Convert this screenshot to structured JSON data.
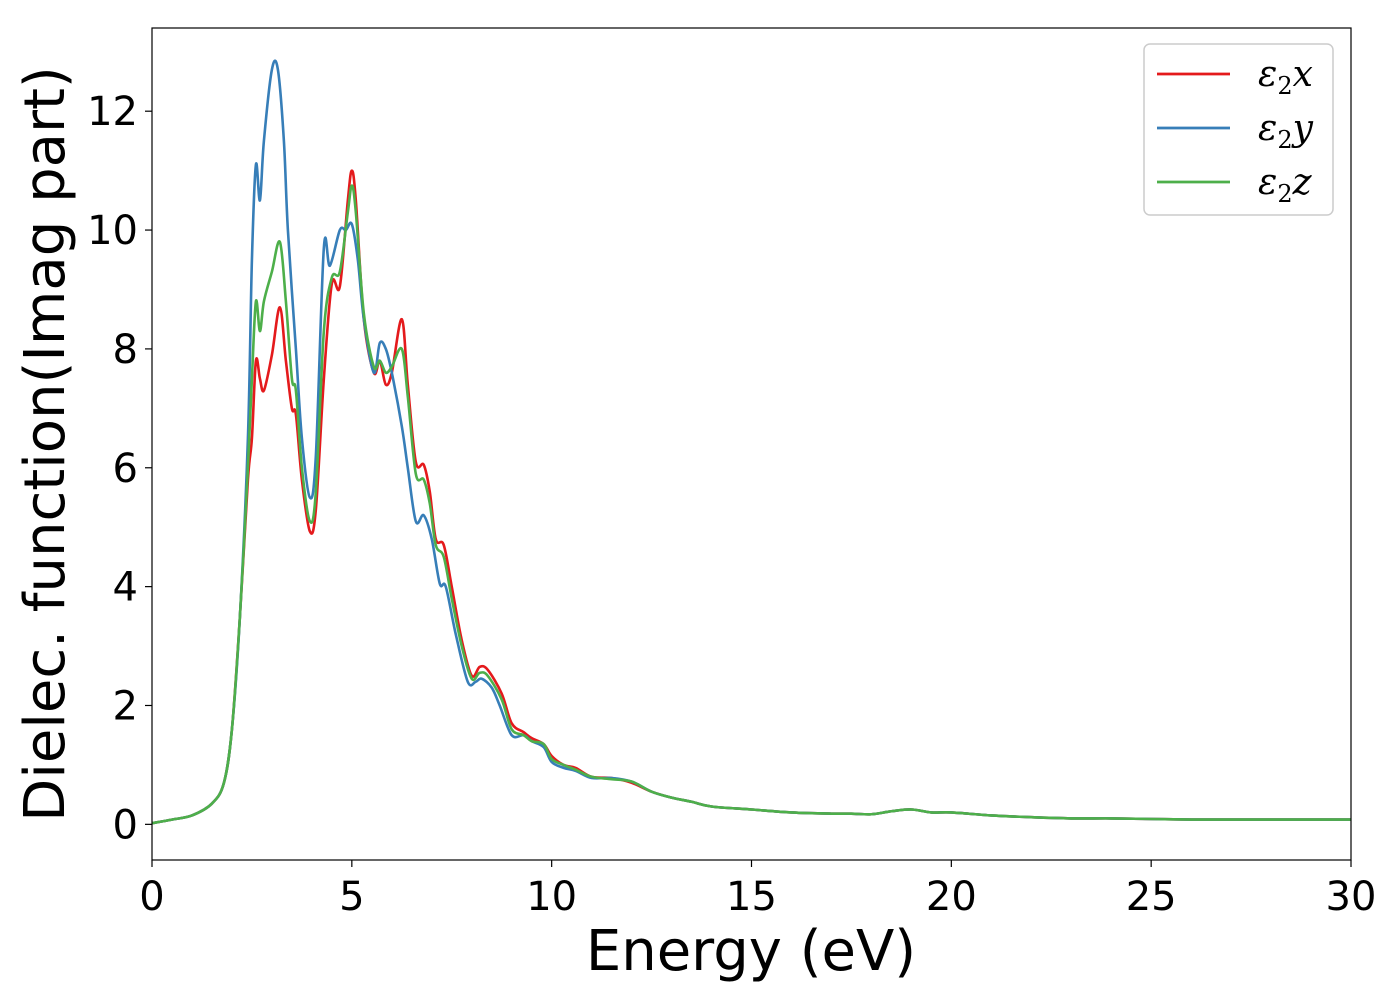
{
  "chart_data": {
    "type": "line",
    "xlabel": "Energy (eV)",
    "ylabel": "Dielec. function(Imag part)",
    "xlim": [
      0,
      30
    ],
    "ylim": [
      -0.6,
      13.4
    ],
    "xticks": [
      0,
      5,
      10,
      15,
      20,
      25,
      30
    ],
    "yticks": [
      0,
      2,
      4,
      6,
      8,
      10,
      12
    ],
    "grid": false,
    "legend_position": "top-right",
    "series": [
      {
        "name": "ε2x",
        "legend": {
          "base": "ε",
          "sub": "2",
          "tail": "x"
        },
        "color": "#e41a1c",
        "points": [
          [
            0,
            0.02
          ],
          [
            0.5,
            0.08
          ],
          [
            1.0,
            0.15
          ],
          [
            1.5,
            0.35
          ],
          [
            1.8,
            0.7
          ],
          [
            2.0,
            1.6
          ],
          [
            2.2,
            3.5
          ],
          [
            2.4,
            5.8
          ],
          [
            2.5,
            6.5
          ],
          [
            2.6,
            7.8
          ],
          [
            2.7,
            7.5
          ],
          [
            2.8,
            7.3
          ],
          [
            3.0,
            7.9
          ],
          [
            3.2,
            8.7
          ],
          [
            3.35,
            7.8
          ],
          [
            3.5,
            7.0
          ],
          [
            3.6,
            6.9
          ],
          [
            3.75,
            5.8
          ],
          [
            3.95,
            4.93
          ],
          [
            4.1,
            5.3
          ],
          [
            4.3,
            7.5
          ],
          [
            4.5,
            9.1
          ],
          [
            4.7,
            9.05
          ],
          [
            4.9,
            10.5
          ],
          [
            5.0,
            11.0
          ],
          [
            5.1,
            10.5
          ],
          [
            5.3,
            8.5
          ],
          [
            5.55,
            7.6
          ],
          [
            5.7,
            7.8
          ],
          [
            5.85,
            7.4
          ],
          [
            6.0,
            7.6
          ],
          [
            6.25,
            8.5
          ],
          [
            6.4,
            7.4
          ],
          [
            6.6,
            6.1
          ],
          [
            6.8,
            6.05
          ],
          [
            6.95,
            5.6
          ],
          [
            7.1,
            4.8
          ],
          [
            7.3,
            4.7
          ],
          [
            7.5,
            4.0
          ],
          [
            7.75,
            3.1
          ],
          [
            8.0,
            2.5
          ],
          [
            8.2,
            2.65
          ],
          [
            8.4,
            2.6
          ],
          [
            8.75,
            2.2
          ],
          [
            9.0,
            1.7
          ],
          [
            9.3,
            1.55
          ],
          [
            9.5,
            1.45
          ],
          [
            9.8,
            1.35
          ],
          [
            10.0,
            1.15
          ],
          [
            10.3,
            1.0
          ],
          [
            10.6,
            0.95
          ],
          [
            11.0,
            0.8
          ],
          [
            11.5,
            0.78
          ],
          [
            12.0,
            0.7
          ],
          [
            12.5,
            0.55
          ],
          [
            13.0,
            0.45
          ],
          [
            13.5,
            0.38
          ],
          [
            14.0,
            0.3
          ],
          [
            15.0,
            0.25
          ],
          [
            16.0,
            0.2
          ],
          [
            17.0,
            0.18
          ],
          [
            17.5,
            0.18
          ],
          [
            18.0,
            0.17
          ],
          [
            18.5,
            0.22
          ],
          [
            19.0,
            0.25
          ],
          [
            19.5,
            0.2
          ],
          [
            20.0,
            0.2
          ],
          [
            21.0,
            0.15
          ],
          [
            22.0,
            0.12
          ],
          [
            23.0,
            0.1
          ],
          [
            24.0,
            0.1
          ],
          [
            25.0,
            0.09
          ],
          [
            26.0,
            0.08
          ],
          [
            27.0,
            0.08
          ],
          [
            28.0,
            0.08
          ],
          [
            29.0,
            0.08
          ],
          [
            30.0,
            0.08
          ]
        ]
      },
      {
        "name": "ε2y",
        "legend": {
          "base": "ε",
          "sub": "2",
          "tail": "y"
        },
        "color": "#377eb8",
        "points": [
          [
            0,
            0.02
          ],
          [
            0.5,
            0.08
          ],
          [
            1.0,
            0.15
          ],
          [
            1.5,
            0.35
          ],
          [
            1.8,
            0.7
          ],
          [
            2.0,
            1.6
          ],
          [
            2.2,
            3.5
          ],
          [
            2.4,
            6.5
          ],
          [
            2.5,
            9.5
          ],
          [
            2.6,
            11.1
          ],
          [
            2.7,
            10.5
          ],
          [
            2.8,
            11.5
          ],
          [
            3.0,
            12.7
          ],
          [
            3.15,
            12.7
          ],
          [
            3.3,
            11.5
          ],
          [
            3.4,
            10.0
          ],
          [
            3.6,
            8.0
          ],
          [
            3.75,
            6.5
          ],
          [
            3.95,
            5.5
          ],
          [
            4.1,
            6.2
          ],
          [
            4.3,
            9.7
          ],
          [
            4.45,
            9.4
          ],
          [
            4.7,
            10.0
          ],
          [
            4.85,
            10.0
          ],
          [
            5.0,
            10.1
          ],
          [
            5.15,
            9.5
          ],
          [
            5.3,
            8.5
          ],
          [
            5.55,
            7.6
          ],
          [
            5.7,
            8.1
          ],
          [
            5.85,
            8.0
          ],
          [
            6.0,
            7.6
          ],
          [
            6.25,
            6.7
          ],
          [
            6.4,
            6.0
          ],
          [
            6.6,
            5.1
          ],
          [
            6.8,
            5.2
          ],
          [
            7.0,
            4.8
          ],
          [
            7.2,
            4.05
          ],
          [
            7.35,
            4.0
          ],
          [
            7.6,
            3.2
          ],
          [
            7.9,
            2.4
          ],
          [
            8.1,
            2.4
          ],
          [
            8.25,
            2.45
          ],
          [
            8.5,
            2.3
          ],
          [
            8.7,
            2.0
          ],
          [
            9.0,
            1.5
          ],
          [
            9.3,
            1.5
          ],
          [
            9.5,
            1.4
          ],
          [
            9.8,
            1.3
          ],
          [
            10.0,
            1.05
          ],
          [
            10.3,
            0.95
          ],
          [
            10.6,
            0.9
          ],
          [
            11.0,
            0.78
          ],
          [
            11.5,
            0.78
          ],
          [
            12.0,
            0.72
          ],
          [
            12.5,
            0.55
          ],
          [
            13.0,
            0.45
          ],
          [
            13.5,
            0.38
          ],
          [
            14.0,
            0.3
          ],
          [
            15.0,
            0.25
          ],
          [
            16.0,
            0.2
          ],
          [
            17.0,
            0.18
          ],
          [
            17.5,
            0.18
          ],
          [
            18.0,
            0.17
          ],
          [
            18.5,
            0.22
          ],
          [
            19.0,
            0.25
          ],
          [
            19.5,
            0.2
          ],
          [
            20.0,
            0.2
          ],
          [
            21.0,
            0.15
          ],
          [
            22.0,
            0.12
          ],
          [
            23.0,
            0.1
          ],
          [
            24.0,
            0.1
          ],
          [
            25.0,
            0.09
          ],
          [
            26.0,
            0.08
          ],
          [
            27.0,
            0.08
          ],
          [
            28.0,
            0.08
          ],
          [
            29.0,
            0.08
          ],
          [
            30.0,
            0.08
          ]
        ]
      },
      {
        "name": "ε2z",
        "legend": {
          "base": "ε",
          "sub": "2",
          "tail": "z"
        },
        "color": "#4daf4a",
        "points": [
          [
            0,
            0.02
          ],
          [
            0.5,
            0.08
          ],
          [
            1.0,
            0.15
          ],
          [
            1.5,
            0.35
          ],
          [
            1.8,
            0.7
          ],
          [
            2.0,
            1.6
          ],
          [
            2.2,
            3.5
          ],
          [
            2.4,
            6.0
          ],
          [
            2.5,
            7.5
          ],
          [
            2.6,
            8.8
          ],
          [
            2.7,
            8.3
          ],
          [
            2.8,
            8.8
          ],
          [
            3.0,
            9.3
          ],
          [
            3.2,
            9.8
          ],
          [
            3.35,
            8.8
          ],
          [
            3.5,
            7.5
          ],
          [
            3.6,
            7.3
          ],
          [
            3.75,
            6.0
          ],
          [
            3.95,
            5.1
          ],
          [
            4.1,
            5.6
          ],
          [
            4.3,
            8.3
          ],
          [
            4.5,
            9.2
          ],
          [
            4.7,
            9.3
          ],
          [
            4.9,
            10.3
          ],
          [
            5.0,
            10.75
          ],
          [
            5.1,
            10.3
          ],
          [
            5.3,
            8.6
          ],
          [
            5.55,
            7.7
          ],
          [
            5.7,
            7.8
          ],
          [
            5.85,
            7.6
          ],
          [
            6.0,
            7.7
          ],
          [
            6.25,
            8.0
          ],
          [
            6.4,
            7.2
          ],
          [
            6.6,
            5.9
          ],
          [
            6.8,
            5.8
          ],
          [
            6.95,
            5.4
          ],
          [
            7.1,
            4.7
          ],
          [
            7.3,
            4.5
          ],
          [
            7.5,
            3.8
          ],
          [
            7.75,
            3.0
          ],
          [
            8.0,
            2.45
          ],
          [
            8.2,
            2.55
          ],
          [
            8.4,
            2.5
          ],
          [
            8.75,
            2.1
          ],
          [
            9.0,
            1.6
          ],
          [
            9.3,
            1.5
          ],
          [
            9.5,
            1.4
          ],
          [
            9.8,
            1.35
          ],
          [
            10.0,
            1.1
          ],
          [
            10.3,
            1.0
          ],
          [
            10.6,
            0.92
          ],
          [
            11.0,
            0.8
          ],
          [
            11.5,
            0.76
          ],
          [
            12.0,
            0.72
          ],
          [
            12.5,
            0.55
          ],
          [
            13.0,
            0.45
          ],
          [
            13.5,
            0.38
          ],
          [
            14.0,
            0.3
          ],
          [
            15.0,
            0.25
          ],
          [
            16.0,
            0.2
          ],
          [
            17.0,
            0.18
          ],
          [
            17.5,
            0.18
          ],
          [
            18.0,
            0.17
          ],
          [
            18.5,
            0.22
          ],
          [
            19.0,
            0.25
          ],
          [
            19.5,
            0.2
          ],
          [
            20.0,
            0.2
          ],
          [
            21.0,
            0.15
          ],
          [
            22.0,
            0.12
          ],
          [
            23.0,
            0.1
          ],
          [
            24.0,
            0.1
          ],
          [
            25.0,
            0.09
          ],
          [
            26.0,
            0.08
          ],
          [
            27.0,
            0.08
          ],
          [
            28.0,
            0.08
          ],
          [
            29.0,
            0.08
          ],
          [
            30.0,
            0.08
          ]
        ]
      }
    ]
  }
}
